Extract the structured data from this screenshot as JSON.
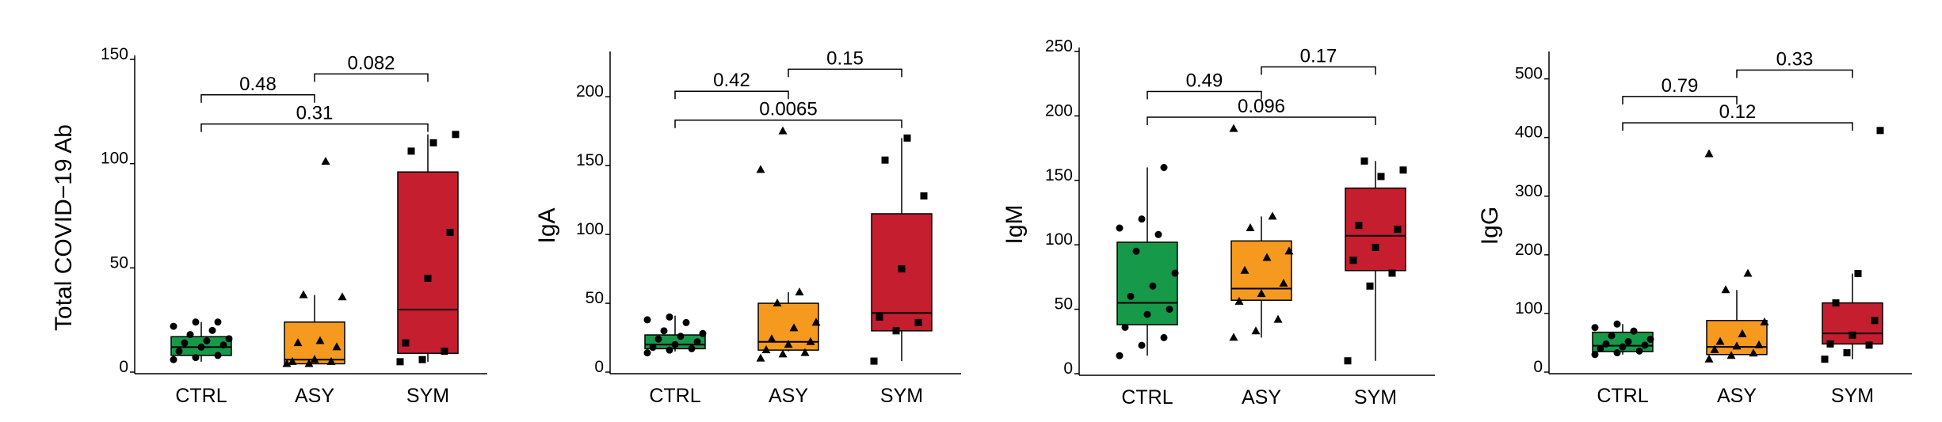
{
  "colors": {
    "CTRL": "#17994a",
    "ASY": "#f59a1e",
    "SYM": "#c41e2f",
    "axis": "#000000"
  },
  "chart_data": [
    {
      "type": "box",
      "ylabel": "Total COVID−19 Ab",
      "categories": [
        "CTRL",
        "ASY",
        "SYM"
      ],
      "ylim": [
        0,
        150
      ],
      "yticks": [
        0,
        50,
        100,
        150
      ],
      "tick_labels": [
        "0",
        "50",
        "100",
        "150"
      ],
      "boxes": [
        {
          "group": "CTRL",
          "whisker_low": 5,
          "q1": 8,
          "median": 12,
          "q3": 17,
          "whisker_high": 24,
          "points": [
            6,
            7,
            8,
            10,
            12,
            13,
            14,
            15,
            16,
            18,
            20,
            22,
            24,
            24
          ]
        },
        {
          "group": "ASY",
          "whisker_low": 4,
          "q1": 4,
          "median": 6,
          "q3": 24,
          "whisker_high": 37,
          "points": [
            4,
            4,
            5,
            5,
            6,
            12,
            14,
            15,
            36,
            37,
            101
          ]
        },
        {
          "group": "SYM",
          "whisker_low": 5,
          "q1": 9,
          "median": 30,
          "q3": 96,
          "whisker_high": 114,
          "points": [
            5,
            6,
            10,
            14,
            45,
            67,
            106,
            110,
            114
          ]
        }
      ],
      "comparisons": [
        {
          "from": "CTRL",
          "to": "ASY",
          "label": "0.48",
          "y": 133
        },
        {
          "from": "ASY",
          "to": "SYM",
          "label": "0.082",
          "y": 143
        },
        {
          "from": "CTRL",
          "to": "SYM",
          "label": "0.31",
          "y": 119
        }
      ]
    },
    {
      "type": "box",
      "ylabel": "IgA",
      "categories": [
        "CTRL",
        "ASY",
        "SYM"
      ],
      "ylim": [
        0,
        230
      ],
      "yticks": [
        0,
        50,
        100,
        150,
        200
      ],
      "tick_labels": [
        "0",
        "50",
        "100",
        "150",
        "200"
      ],
      "boxes": [
        {
          "group": "CTRL",
          "whisker_low": 15,
          "q1": 17,
          "median": 20,
          "q3": 27,
          "whisker_high": 41,
          "points": [
            14,
            16,
            17,
            18,
            20,
            22,
            24,
            26,
            28,
            30,
            36,
            38,
            40
          ]
        },
        {
          "group": "ASY",
          "whisker_low": 15,
          "q1": 16,
          "median": 22,
          "q3": 50,
          "whisker_high": 58,
          "points": [
            10,
            13,
            14,
            16,
            20,
            22,
            24,
            32,
            36,
            50,
            58,
            147,
            175
          ]
        },
        {
          "group": "SYM",
          "whisker_low": 8,
          "q1": 30,
          "median": 43,
          "q3": 115,
          "whisker_high": 170,
          "points": [
            8,
            30,
            36,
            40,
            75,
            128,
            154,
            170
          ]
        }
      ],
      "comparisons": [
        {
          "from": "CTRL",
          "to": "ASY",
          "label": "0.42",
          "y": 204
        },
        {
          "from": "ASY",
          "to": "SYM",
          "label": "0.15",
          "y": 220
        },
        {
          "from": "CTRL",
          "to": "SYM",
          "label": "0.0065",
          "y": 183
        }
      ]
    },
    {
      "type": "box",
      "ylabel": "IgM",
      "categories": [
        "CTRL",
        "ASY",
        "SYM"
      ],
      "ylim": [
        0,
        250
      ],
      "yticks": [
        0,
        50,
        100,
        150,
        200,
        250
      ],
      "tick_labels": [
        "0",
        "50",
        "100",
        "150",
        "200",
        "250"
      ],
      "boxes": [
        {
          "group": "CTRL",
          "whisker_low": 14,
          "q1": 38,
          "median": 55,
          "q3": 102,
          "whisker_high": 160,
          "points": [
            14,
            22,
            28,
            36,
            46,
            50,
            60,
            68,
            78,
            95,
            108,
            113,
            120,
            160
          ]
        },
        {
          "group": "ASY",
          "whisker_low": 28,
          "q1": 57,
          "median": 66,
          "q3": 103,
          "whisker_high": 122,
          "points": [
            28,
            33,
            42,
            56,
            62,
            70,
            80,
            90,
            95,
            113,
            122,
            190
          ]
        },
        {
          "group": "SYM",
          "whisker_low": 10,
          "q1": 80,
          "median": 107,
          "q3": 144,
          "whisker_high": 165,
          "points": [
            10,
            68,
            78,
            88,
            98,
            112,
            115,
            153,
            158,
            165
          ]
        }
      ],
      "comparisons": [
        {
          "from": "CTRL",
          "to": "ASY",
          "label": "0.49",
          "y": 219
        },
        {
          "from": "ASY",
          "to": "SYM",
          "label": "0.17",
          "y": 238
        },
        {
          "from": "CTRL",
          "to": "SYM",
          "label": "0.096",
          "y": 199
        }
      ]
    },
    {
      "type": "box",
      "ylabel": "IgG",
      "categories": [
        "CTRL",
        "ASY",
        "SYM"
      ],
      "ylim": [
        0,
        540
      ],
      "yticks": [
        0,
        100,
        200,
        300,
        400,
        500
      ],
      "tick_labels": [
        "0",
        "100",
        "200",
        "300",
        "400",
        "500"
      ],
      "boxes": [
        {
          "group": "CTRL",
          "whisker_low": 30,
          "q1": 35,
          "median": 45,
          "q3": 68,
          "whisker_high": 82,
          "points": [
            30,
            33,
            36,
            40,
            43,
            46,
            48,
            52,
            56,
            62,
            70,
            76,
            82
          ]
        },
        {
          "group": "ASY",
          "whisker_low": 30,
          "q1": 30,
          "median": 43,
          "q3": 88,
          "whisker_high": 140,
          "points": [
            22,
            28,
            32,
            38,
            44,
            46,
            52,
            65,
            85,
            140,
            168,
            372
          ]
        },
        {
          "group": "SYM",
          "whisker_low": 22,
          "q1": 48,
          "median": 66,
          "q3": 118,
          "whisker_high": 168,
          "points": [
            22,
            33,
            46,
            48,
            63,
            88,
            118,
            168,
            412
          ]
        }
      ],
      "comparisons": [
        {
          "from": "CTRL",
          "to": "ASY",
          "label": "0.79",
          "y": 470
        },
        {
          "from": "ASY",
          "to": "SYM",
          "label": "0.33",
          "y": 515
        },
        {
          "from": "CTRL",
          "to": "SYM",
          "label": "0.12",
          "y": 425
        }
      ]
    }
  ]
}
